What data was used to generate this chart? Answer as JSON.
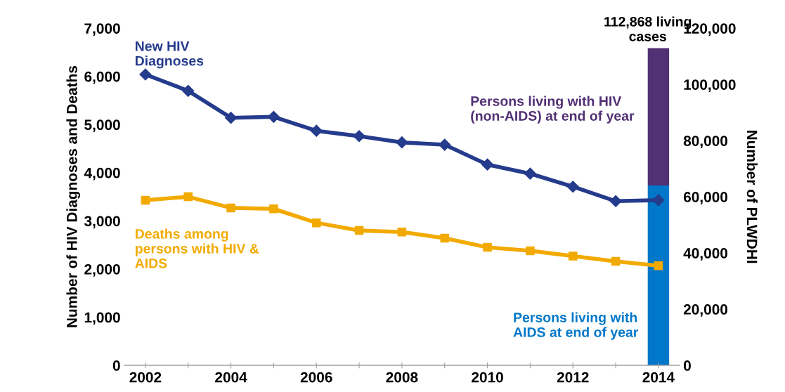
{
  "chart_data": {
    "type": "line",
    "xlabel": null,
    "ylabel": "Number of HIV Diagnoses and Deaths",
    "y2label": "Number of PLWDHI",
    "x": [
      2002,
      2003,
      2004,
      2005,
      2006,
      2007,
      2008,
      2009,
      2010,
      2011,
      2012,
      2013,
      2014
    ],
    "xlim": [
      2001.5,
      2014.5
    ],
    "xticks": [
      2002,
      {
        "value": 2003,
        "label": null
      },
      2004,
      {
        "value": 2005,
        "label": null
      },
      2006,
      {
        "value": 2007,
        "label": null
      },
      2008,
      {
        "value": 2009,
        "label": null
      },
      2010,
      {
        "value": 2011,
        "label": null
      },
      2012,
      {
        "value": 2013,
        "label": null
      },
      2014
    ],
    "ylim": [
      0,
      7000
    ],
    "yticks": [
      0,
      {
        "value": 1000,
        "label": "1,000"
      },
      {
        "value": 2000,
        "label": "2,000"
      },
      {
        "value": 3000,
        "label": "3,000"
      },
      {
        "value": 4000,
        "label": "4,000"
      },
      {
        "value": 5000,
        "label": "5,000"
      },
      {
        "value": 6000,
        "label": "6,000"
      },
      {
        "value": 7000,
        "label": "7,000"
      }
    ],
    "y2lim": [
      0,
      120000
    ],
    "y2ticks": [
      0,
      {
        "value": 20000,
        "label": "20,000"
      },
      {
        "value": 40000,
        "label": "40,000"
      },
      {
        "value": 60000,
        "label": "60,000"
      },
      {
        "value": 80000,
        "label": "80,000"
      },
      {
        "value": 100000,
        "label": "100,000"
      },
      {
        "value": 120000,
        "label": "120,000"
      }
    ],
    "stacked": true,
    "grid": false,
    "legend": false,
    "totals": [
      "112,868 living cases"
    ],
    "series": [
      {
        "type": "bar",
        "axis": "y2",
        "x": [
          2014
        ],
        "name": "Persons living with AIDS at end of year",
        "color": "#0077c8",
        "values": [
          64000
        ]
      },
      {
        "type": "bar",
        "axis": "y2",
        "x": [
          2014
        ],
        "name": "Persons living with HIV (non-AIDS) at end of year",
        "color": "#523074",
        "values": [
          48900
        ]
      },
      {
        "name": "New HIV Diagnoses",
        "color": "#253b8c",
        "marker": "diamond",
        "values": [
          6040,
          5700,
          5140,
          5160,
          4870,
          4760,
          4630,
          4580,
          4170,
          3980,
          3710,
          3410,
          3430
        ]
      },
      {
        "name": "Deaths among persons with HIV & AIDS",
        "color": "#f2aa00",
        "marker": "square",
        "values": [
          3430,
          3500,
          3270,
          3250,
          2960,
          2800,
          2770,
          2640,
          2450,
          2380,
          2270,
          2160,
          2070
        ]
      }
    ]
  }
}
